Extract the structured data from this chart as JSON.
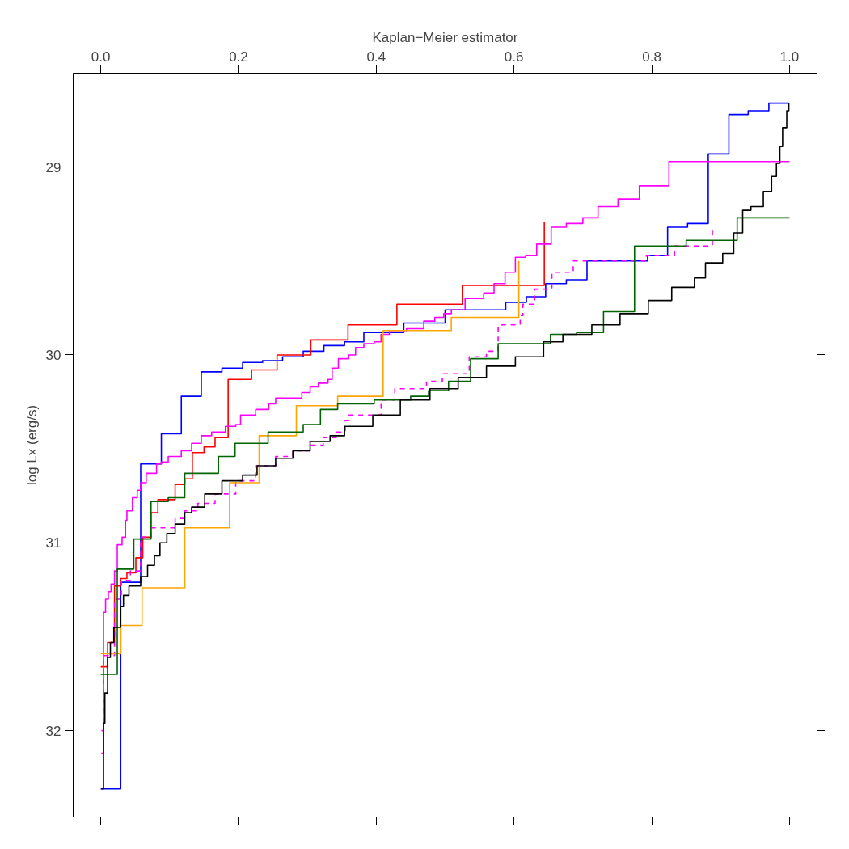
{
  "chart_data": {
    "type": "step",
    "xlabel": "Kaplan−Meier estimator",
    "ylabel": "log Lx (erg/s)",
    "xlim": [
      -0.04,
      1.04
    ],
    "xticks": [
      {
        "value": 0,
        "label": "0.0"
      },
      {
        "value": 0.2,
        "label": "0.2"
      },
      {
        "value": 0.4,
        "label": "0.4"
      },
      {
        "value": 0.6,
        "label": "0.6"
      },
      {
        "value": 0.8,
        "label": "0.8"
      },
      {
        "value": 1,
        "label": "1.0"
      }
    ],
    "ylim": [
      32.46,
      28.5
    ],
    "yticks": [
      29,
      30,
      31,
      32
    ],
    "grid": false,
    "series": [
      {
        "color": "#0000ff",
        "x": [
          0,
          0.029,
          0.058,
          0.088,
          0.117,
          0.146,
          0.176,
          0.206,
          0.235,
          0.264,
          0.294,
          0.324,
          0.354,
          0.382,
          0.44,
          0.5,
          0.588,
          0.618,
          0.646,
          0.676,
          0.706,
          0.794,
          0.823,
          0.852,
          0.882,
          0.912,
          0.94,
          0.97,
          0.999
        ],
        "values": [
          32.31,
          31.21,
          30.58,
          30.42,
          30.22,
          30.09,
          30.07,
          30.04,
          30.03,
          30.01,
          29.98,
          29.95,
          29.93,
          29.88,
          29.83,
          29.76,
          29.72,
          29.69,
          29.62,
          29.6,
          29.5,
          29.47,
          29.32,
          29.3,
          28.93,
          28.72,
          28.7,
          28.66,
          28.66
        ]
      },
      {
        "color": "#ff0000",
        "x": [
          0,
          0.01,
          0.02,
          0.029,
          0.038,
          0.051,
          0.061,
          0.073,
          0.083,
          0.108,
          0.122,
          0.133,
          0.15,
          0.166,
          0.185,
          0.219,
          0.256,
          0.305,
          0.359,
          0.43,
          0.525,
          0.644
        ],
        "values": [
          31.66,
          31.53,
          31.23,
          31.19,
          31.16,
          31.08,
          30.97,
          30.84,
          30.77,
          30.69,
          30.66,
          30.52,
          30.49,
          30.44,
          30.13,
          30.08,
          30.0,
          29.92,
          29.84,
          29.73,
          29.63,
          29.29
        ]
      },
      {
        "color": "#ff00ff",
        "x": [
          0.001,
          0.004,
          0.007,
          0.011,
          0.015,
          0.02,
          0.024,
          0.031,
          0.036,
          0.038,
          0.046,
          0.053,
          0.058,
          0.066,
          0.081,
          0.088,
          0.098,
          0.117,
          0.132,
          0.146,
          0.161,
          0.181,
          0.196,
          0.203,
          0.225,
          0.244,
          0.254,
          0.292,
          0.304,
          0.316,
          0.33,
          0.336,
          0.345,
          0.36,
          0.37,
          0.382,
          0.397,
          0.407,
          0.419,
          0.444,
          0.469,
          0.485,
          0.498,
          0.509,
          0.529,
          0.556,
          0.571,
          0.587,
          0.602,
          0.617,
          0.633,
          0.654,
          0.676,
          0.7,
          0.722,
          0.751,
          0.782,
          0.825,
          1.0
        ],
        "values": [
          32.12,
          31.37,
          31.3,
          31.26,
          31.22,
          31.15,
          31.01,
          30.97,
          30.88,
          30.83,
          30.76,
          30.72,
          30.68,
          30.63,
          30.58,
          30.57,
          30.54,
          30.51,
          30.47,
          30.43,
          30.41,
          30.38,
          30.37,
          30.32,
          30.29,
          30.26,
          30.23,
          30.2,
          30.17,
          30.15,
          30.13,
          30.07,
          30.02,
          30.0,
          29.96,
          29.94,
          29.93,
          29.89,
          29.87,
          29.86,
          29.82,
          29.8,
          29.78,
          29.76,
          29.7,
          29.67,
          29.62,
          29.56,
          29.48,
          29.47,
          29.41,
          29.32,
          29.3,
          29.27,
          29.21,
          29.17,
          29.1,
          28.97,
          28.97
        ]
      },
      {
        "color": "#ff00ff",
        "line_style": "dashed",
        "x": [
          0.001,
          0.004,
          0.02,
          0.03,
          0.043,
          0.058,
          0.073,
          0.108,
          0.122,
          0.141,
          0.166,
          0.196,
          0.225,
          0.254,
          0.279,
          0.304,
          0.323,
          0.342,
          0.355,
          0.36,
          0.407,
          0.427,
          0.473,
          0.496,
          0.535,
          0.56,
          0.577,
          0.609,
          0.613,
          0.63,
          0.655,
          0.686,
          0.792,
          0.833,
          0.888
        ],
        "values": [
          32.0,
          31.6,
          31.3,
          31.2,
          31.15,
          30.97,
          30.92,
          30.87,
          30.83,
          30.79,
          30.74,
          30.67,
          30.59,
          30.54,
          30.51,
          30.48,
          30.44,
          30.41,
          30.35,
          30.32,
          30.24,
          30.18,
          30.14,
          30.1,
          30.01,
          29.98,
          29.84,
          29.79,
          29.73,
          29.65,
          29.56,
          29.5,
          29.47,
          29.42,
          29.32
        ]
      },
      {
        "color": "#ffa500",
        "x": [
          0,
          0.029,
          0.06,
          0.122,
          0.187,
          0.23,
          0.284,
          0.344,
          0.41,
          0.509,
          0.607
        ],
        "values": [
          31.59,
          31.44,
          31.24,
          30.92,
          30.68,
          30.43,
          30.27,
          30.22,
          29.87,
          29.8,
          29.5
        ]
      },
      {
        "color": "#006400",
        "x": [
          0,
          0.024,
          0.048,
          0.073,
          0.098,
          0.122,
          0.171,
          0.195,
          0.243,
          0.294,
          0.319,
          0.344,
          0.397,
          0.45,
          0.476,
          0.505,
          0.537,
          0.577,
          0.653,
          0.691,
          0.73,
          0.775,
          0.85,
          0.924,
          1.0
        ],
        "values": [
          31.7,
          31.14,
          30.98,
          30.78,
          30.76,
          30.63,
          30.54,
          30.47,
          30.41,
          30.37,
          30.29,
          30.26,
          30.24,
          30.22,
          30.19,
          30.14,
          30.02,
          29.94,
          29.89,
          29.88,
          29.77,
          29.42,
          29.39,
          29.27,
          29.27
        ]
      },
      {
        "color": "#000000",
        "x": [
          0.001,
          0.004,
          0.006,
          0.01,
          0.014,
          0.019,
          0.029,
          0.033,
          0.041,
          0.058,
          0.068,
          0.078,
          0.086,
          0.096,
          0.108,
          0.122,
          0.132,
          0.151,
          0.176,
          0.206,
          0.227,
          0.254,
          0.279,
          0.304,
          0.333,
          0.354,
          0.395,
          0.435,
          0.478,
          0.519,
          0.56,
          0.602,
          0.643,
          0.671,
          0.713,
          0.754,
          0.795,
          0.829,
          0.862,
          0.878,
          0.903,
          0.919,
          0.932,
          0.944,
          0.962,
          0.974,
          0.981,
          0.986,
          0.99,
          0.996,
          0.999
        ],
        "values": [
          32.31,
          31.96,
          31.8,
          31.61,
          31.53,
          31.45,
          31.34,
          31.28,
          31.23,
          31.18,
          31.12,
          31.07,
          31.0,
          30.95,
          30.9,
          30.84,
          30.81,
          30.74,
          30.67,
          30.64,
          30.59,
          30.55,
          30.51,
          30.46,
          30.43,
          30.38,
          30.32,
          30.24,
          30.18,
          30.12,
          30.06,
          30.01,
          29.93,
          29.89,
          29.84,
          29.78,
          29.71,
          29.64,
          29.59,
          29.51,
          29.46,
          29.35,
          29.23,
          29.21,
          29.13,
          29.05,
          28.98,
          28.89,
          28.79,
          28.7,
          28.66
        ]
      }
    ]
  }
}
